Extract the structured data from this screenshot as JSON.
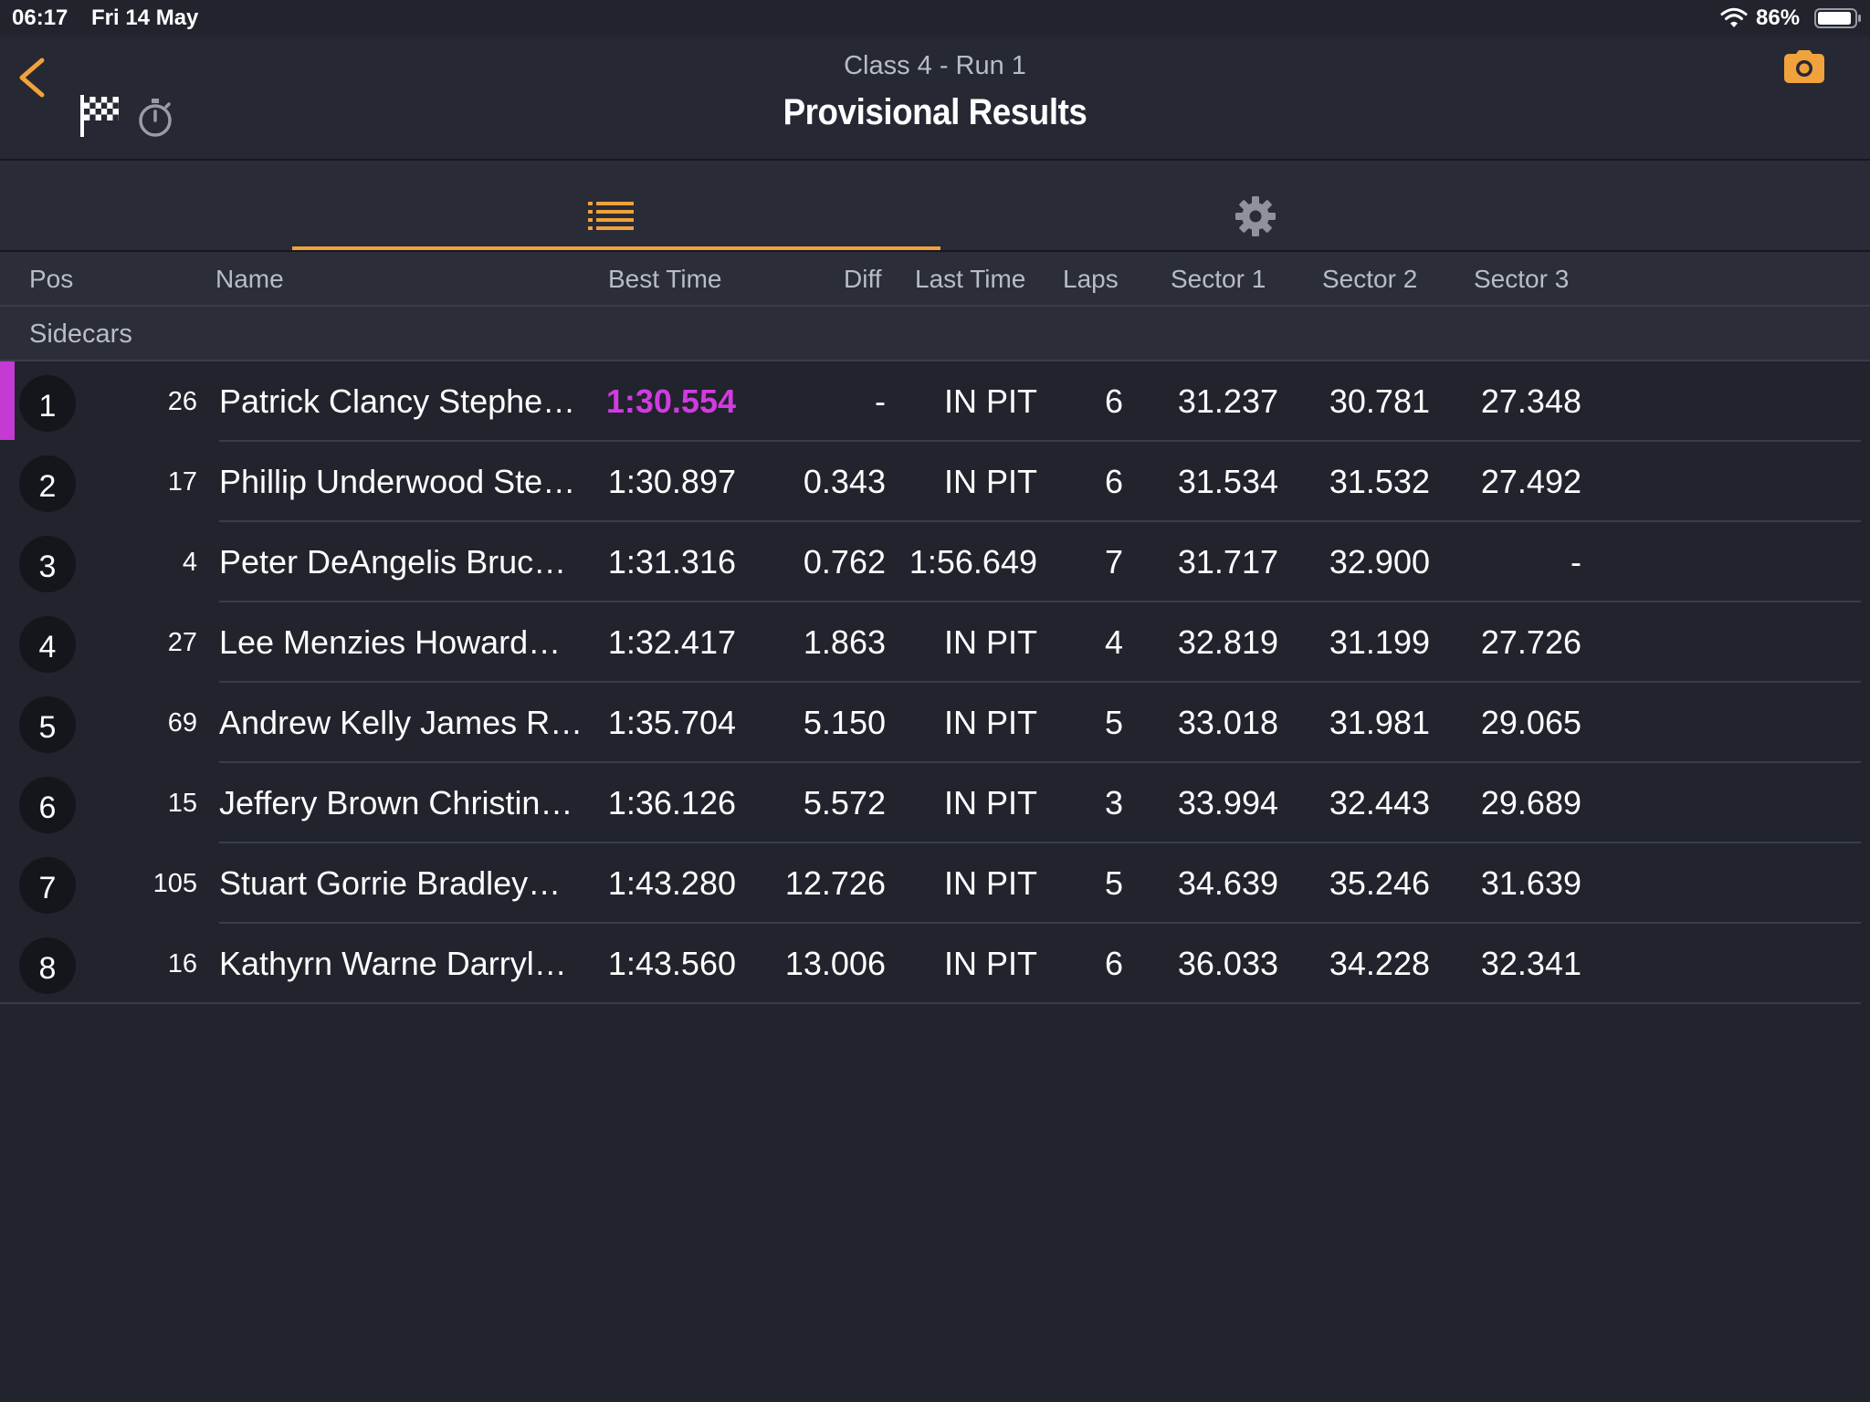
{
  "status_bar": {
    "time": "06:17",
    "date": "Fri 14 May",
    "battery": "86%",
    "icons": [
      "wifi-icon",
      "battery-icon"
    ]
  },
  "header": {
    "subtitle": "Class 4 - Run 1",
    "title": "Provisional Results",
    "icons": [
      "back-chevron-icon",
      "checkered-flag-icon",
      "stopwatch-icon",
      "camera-icon"
    ]
  },
  "tabs": [
    {
      "icon": "list-icon",
      "selected": true
    },
    {
      "icon": "gear-icon",
      "selected": false
    }
  ],
  "columns": [
    "Pos",
    "Name",
    "Best Time",
    "Diff",
    "Last Time",
    "Laps",
    "Sector 1",
    "Sector 2",
    "Sector 3"
  ],
  "group": "Sidecars",
  "colors": {
    "accent": "#f0a23c",
    "fastest": "#d13be0",
    "background": "#21232d"
  },
  "rows": [
    {
      "pos": "1",
      "num": "26",
      "name": "Patrick Clancy Stephe…",
      "best": "1:30.554",
      "diff": "-",
      "last": "IN PIT",
      "laps": "6",
      "s1": "31.237",
      "s2": "30.781",
      "s3": "27.348",
      "fastest": true
    },
    {
      "pos": "2",
      "num": "17",
      "name": "Phillip Underwood Ste…",
      "best": "1:30.897",
      "diff": "0.343",
      "last": "IN PIT",
      "laps": "6",
      "s1": "31.534",
      "s2": "31.532",
      "s3": "27.492"
    },
    {
      "pos": "3",
      "num": "4",
      "name": "Peter DeAngelis Bruce…",
      "best": "1:31.316",
      "diff": "0.762",
      "last": "1:56.649",
      "laps": "7",
      "s1": "31.717",
      "s2": "32.900",
      "s3": "-"
    },
    {
      "pos": "4",
      "num": "27",
      "name": "Lee Menzies Howard…",
      "best": "1:32.417",
      "diff": "1.863",
      "last": "IN PIT",
      "laps": "4",
      "s1": "32.819",
      "s2": "31.199",
      "s3": "27.726"
    },
    {
      "pos": "5",
      "num": "69",
      "name": "Andrew Kelly James R…",
      "best": "1:35.704",
      "diff": "5.150",
      "last": "IN PIT",
      "laps": "5",
      "s1": "33.018",
      "s2": "31.981",
      "s3": "29.065"
    },
    {
      "pos": "6",
      "num": "15",
      "name": "Jeffery Brown Christin…",
      "best": "1:36.126",
      "diff": "5.572",
      "last": "IN PIT",
      "laps": "3",
      "s1": "33.994",
      "s2": "32.443",
      "s3": "29.689"
    },
    {
      "pos": "7",
      "num": "105",
      "name": "Stuart Gorrie Bradley…",
      "best": "1:43.280",
      "diff": "12.726",
      "last": "IN PIT",
      "laps": "5",
      "s1": "34.639",
      "s2": "35.246",
      "s3": "31.639"
    },
    {
      "pos": "8",
      "num": "16",
      "name": "Kathyrn Warne Darryl…",
      "best": "1:43.560",
      "diff": "13.006",
      "last": "IN PIT",
      "laps": "6",
      "s1": "36.033",
      "s2": "34.228",
      "s3": "32.341"
    }
  ]
}
